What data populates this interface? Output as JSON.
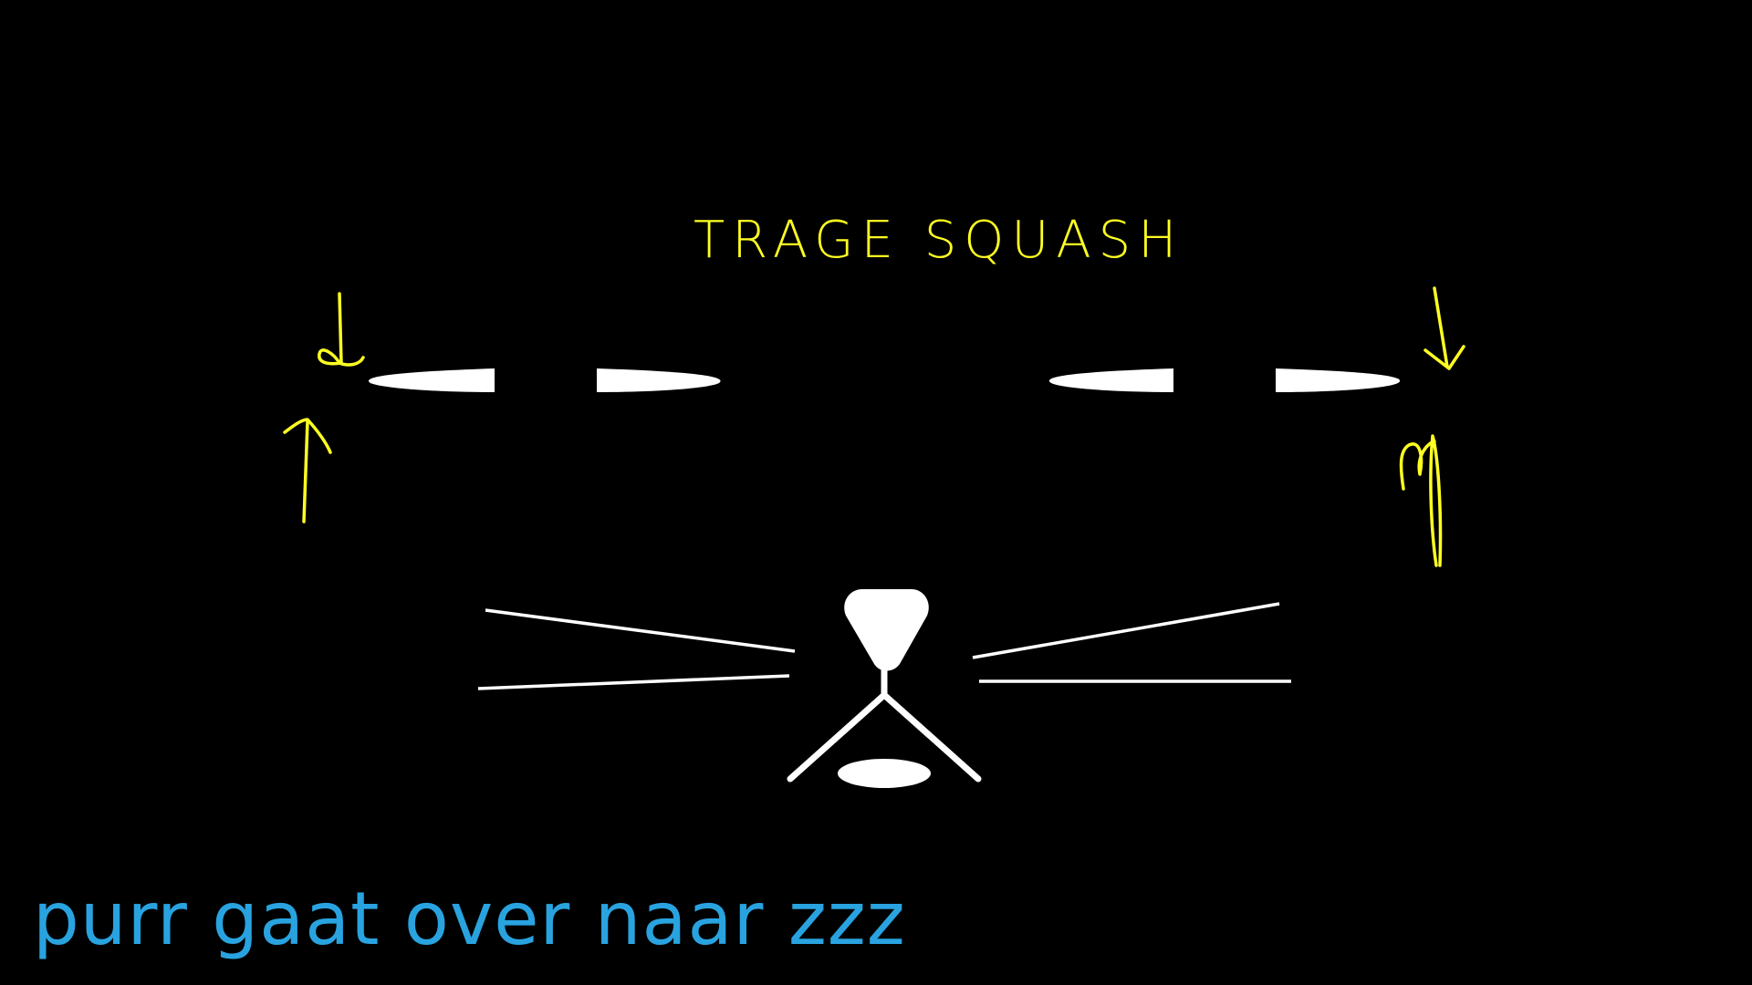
{
  "annotation": {
    "text": "TRAGE SQUASH",
    "color": "#ffff22"
  },
  "caption": {
    "text": "purr gaat over naar zzz",
    "color": "#29a3e0"
  },
  "face": {
    "color": "#ffffff",
    "background": "#000000"
  }
}
